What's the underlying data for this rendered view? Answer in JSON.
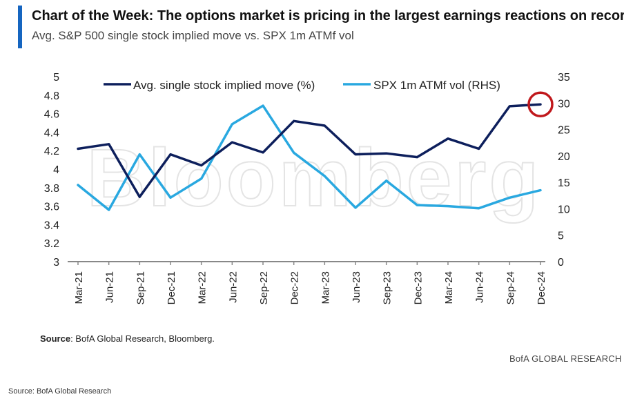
{
  "header": {
    "title": "Chart of the Week: The options market is pricing in the largest earnings reactions on record",
    "subtitle": "Avg. S&P 500 single stock implied move vs. SPX 1m ATMf vol"
  },
  "chart_data": {
    "type": "line",
    "categories": [
      "Mar-21",
      "Jun-21",
      "Sep-21",
      "Dec-21",
      "Mar-22",
      "Jun-22",
      "Sep-22",
      "Dec-22",
      "Mar-23",
      "Jun-23",
      "Sep-23",
      "Dec-23",
      "Mar-24",
      "Jun-24",
      "Sep-24",
      "Dec-24"
    ],
    "series": [
      {
        "name": "Avg. single stock implied move (%)",
        "axis": "left",
        "color": "#0d1f5c",
        "values": [
          4.22,
          4.27,
          3.7,
          4.16,
          4.04,
          4.29,
          4.18,
          4.52,
          4.47,
          4.16,
          4.17,
          4.13,
          4.33,
          4.22,
          4.68,
          4.7
        ]
      },
      {
        "name": "SPX 1m ATMf vol (RHS)",
        "axis": "right",
        "color": "#29a8e0",
        "values": [
          14.5,
          9.8,
          20.3,
          12.1,
          15.7,
          26.0,
          29.5,
          20.6,
          16.2,
          10.2,
          15.3,
          10.7,
          10.5,
          10.1,
          12.1,
          13.5
        ]
      }
    ],
    "y_left": {
      "min": 3,
      "max": 5,
      "ticks": [
        "3",
        "3.2",
        "3.4",
        "3.6",
        "3.8",
        "4",
        "4.2",
        "4.4",
        "4.6",
        "4.8",
        "5"
      ]
    },
    "y_right": {
      "min": 0,
      "max": 35,
      "ticks": [
        "0",
        "5",
        "10",
        "15",
        "20",
        "25",
        "30",
        "35"
      ]
    },
    "highlight": {
      "series": 0,
      "index": 15,
      "color": "#c0181c"
    },
    "legend_position": "top",
    "grid": false,
    "watermark": "Bloomberg"
  },
  "footer": {
    "source_label": "Source",
    "source_text": ": BofA Global Research, Bloomberg.",
    "brand": "BofA GLOBAL RESEARCH",
    "bottom_source": "Source: BofA Global Research"
  }
}
